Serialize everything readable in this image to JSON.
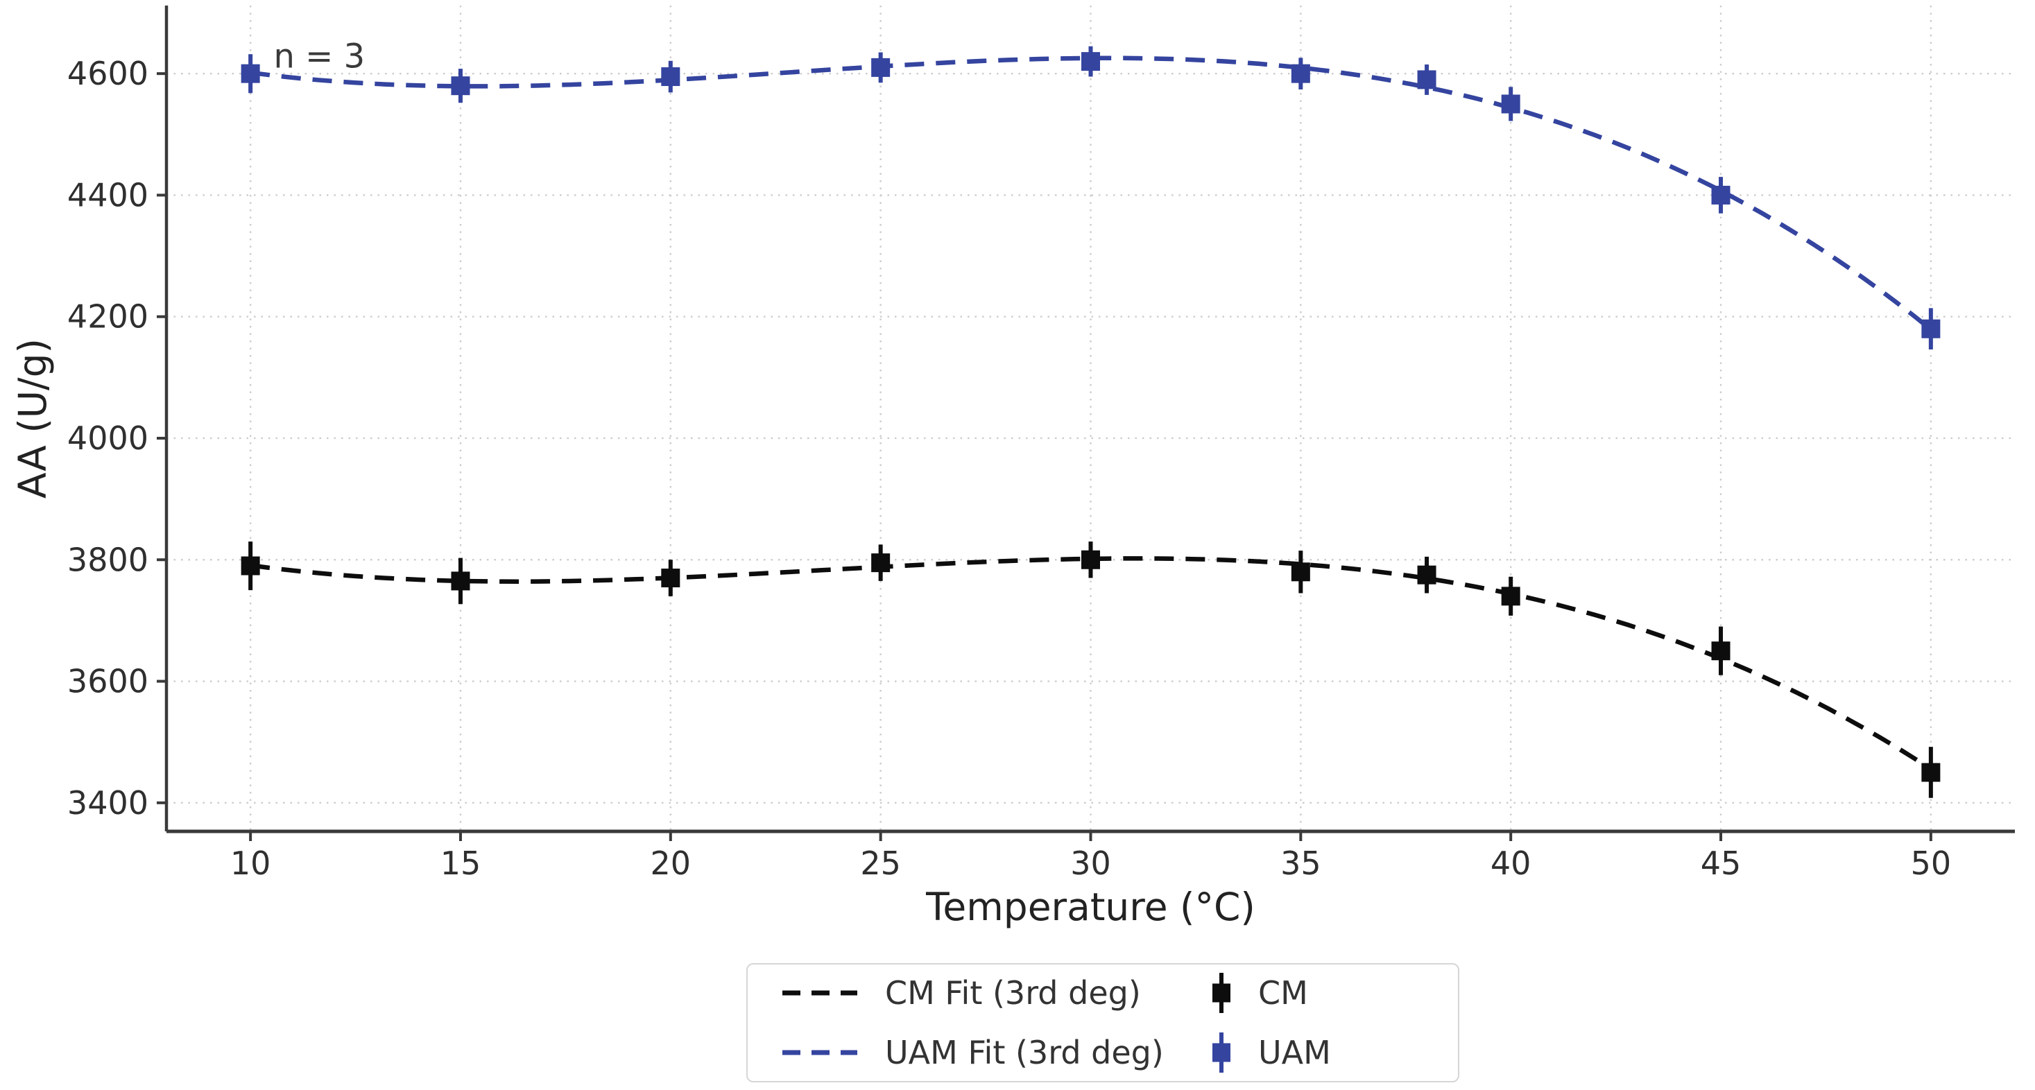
{
  "figure": {
    "background": "#ffffff"
  },
  "chart_data": {
    "type": "scatter",
    "title": "",
    "xlabel": "Temperature (°C)",
    "ylabel": "AA (U/g)",
    "annotation": {
      "text": "n = 3",
      "x": 10.55,
      "y": 4628
    },
    "x": [
      10,
      15,
      20,
      25,
      30,
      35,
      38,
      40,
      45,
      50
    ],
    "series": [
      {
        "name": "CM",
        "fit_label": "CM Fit (3rd deg)",
        "color": "#0d0d0d",
        "values": [
          3790,
          3765,
          3770,
          3795,
          3800,
          3780,
          3775,
          3740,
          3650,
          3450
        ],
        "errors": [
          40,
          38,
          30,
          30,
          30,
          35,
          30,
          32,
          40,
          42
        ],
        "fit": "poly3",
        "line_style": "dashed",
        "marker": "square"
      },
      {
        "name": "UAM",
        "fit_label": "UAM Fit (3rd deg)",
        "color": "#34449f",
        "values": [
          4600,
          4580,
          4595,
          4610,
          4620,
          4600,
          4590,
          4550,
          4400,
          4180
        ],
        "errors": [
          32,
          28,
          26,
          25,
          25,
          26,
          25,
          28,
          30,
          34
        ],
        "fit": "poly3",
        "line_style": "dashed",
        "marker": "square"
      }
    ],
    "xticks": [
      10,
      15,
      20,
      25,
      30,
      35,
      40,
      45,
      50
    ],
    "yticks": [
      3400,
      3600,
      3800,
      4000,
      4200,
      4400,
      4600
    ],
    "xlim": [
      8,
      52
    ],
    "ylim": [
      3353,
      4712
    ],
    "grid": {
      "style": "dotted",
      "color": "#cccccc"
    },
    "axis_color": "#3a3a3a",
    "tick_label_color": "#2f2f2f",
    "legend_position": "bottom-center"
  },
  "legend": {
    "entries": [
      {
        "label": "CM Fit (3rd deg)",
        "icon": "dashed-line-icon",
        "series": 0
      },
      {
        "label": "CM",
        "icon": "errorbar-marker-icon",
        "series": 0
      },
      {
        "label": "UAM Fit (3rd deg)",
        "icon": "dashed-line-icon",
        "series": 1
      },
      {
        "label": "UAM",
        "icon": "errorbar-marker-icon",
        "series": 1
      }
    ]
  }
}
